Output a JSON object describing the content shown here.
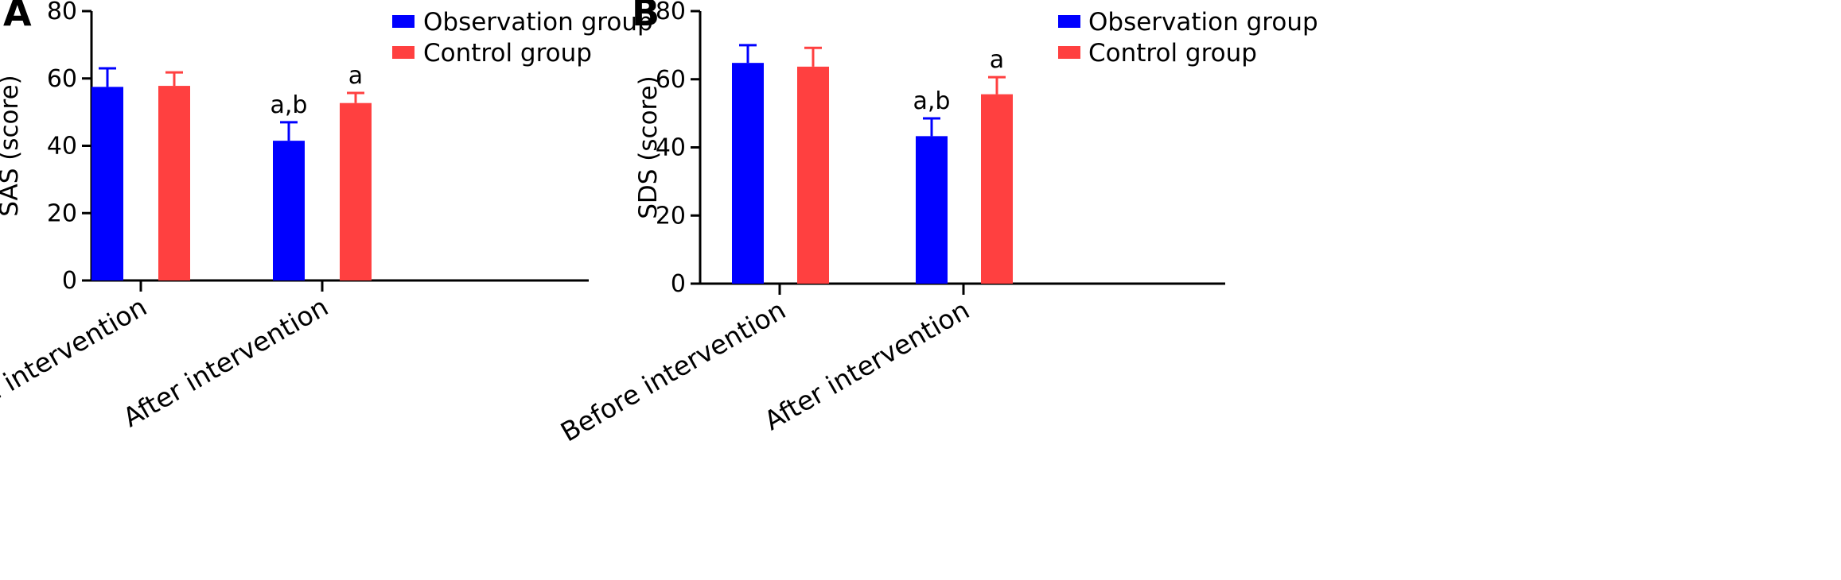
{
  "chart_data": [
    {
      "type": "bar",
      "panel_label": "A",
      "categories": [
        "Before intervention",
        "After intervention"
      ],
      "series": [
        {
          "name": "Observation group",
          "color": "#0000FF",
          "values": [
            57.5,
            41.5
          ],
          "errors": [
            5.5,
            5.5
          ]
        },
        {
          "name": "Control group",
          "color": "#FF4040",
          "values": [
            57.8,
            52.7
          ],
          "errors": [
            4.0,
            3.0
          ]
        }
      ],
      "annotations": [
        [
          "",
          ""
        ],
        [
          "a,b",
          "a"
        ]
      ],
      "xlabel": "",
      "ylabel": "SAS (score)",
      "ylim": [
        0,
        80
      ],
      "yticks": [
        0,
        20,
        40,
        60,
        80
      ],
      "legend": "top-right",
      "grid": false
    },
    {
      "type": "bar",
      "panel_label": "B",
      "categories": [
        "Before intervention",
        "After intervention"
      ],
      "series": [
        {
          "name": "Observation group",
          "color": "#0000FF",
          "values": [
            64.8,
            43.3
          ],
          "errors": [
            5.2,
            5.2
          ]
        },
        {
          "name": "Control group",
          "color": "#FF4040",
          "values": [
            63.7,
            55.6
          ],
          "errors": [
            5.5,
            5.0
          ]
        }
      ],
      "annotations": [
        [
          "",
          ""
        ],
        [
          "a,b",
          "a"
        ]
      ],
      "xlabel": "",
      "ylabel": "SDS (score)",
      "ylim": [
        0,
        80
      ],
      "yticks": [
        0,
        20,
        40,
        60,
        80
      ],
      "legend": "top-right",
      "grid": false
    }
  ]
}
